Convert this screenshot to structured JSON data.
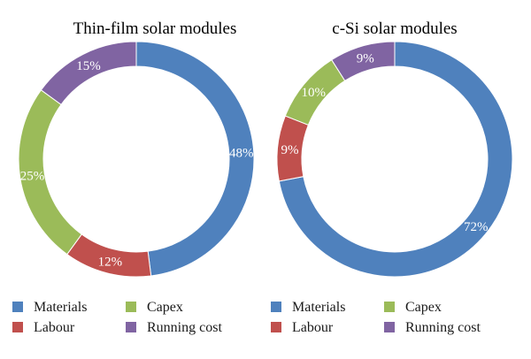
{
  "chart_data": [
    {
      "type": "pie",
      "title": "Thin-film solar modules",
      "categories": [
        "Materials",
        "Labour",
        "Capex",
        "Running cost"
      ],
      "values": [
        48,
        12,
        25,
        15
      ],
      "labels": [
        "48%",
        "12%",
        "25%",
        "15%"
      ],
      "colors": [
        "#4F81BD",
        "#C0504D",
        "#9BBB59",
        "#8064A2"
      ],
      "legend": {
        "placement": "bottom",
        "entries": [
          "Materials",
          "Capex",
          "Labour",
          "Running cost"
        ]
      }
    },
    {
      "type": "pie",
      "title": "c-Si solar modules",
      "categories": [
        "Materials",
        "Labour",
        "Capex",
        "Running cost"
      ],
      "values": [
        72,
        9,
        10,
        9
      ],
      "labels": [
        "72%",
        "9%",
        "10%",
        "9%"
      ],
      "colors": [
        "#4F81BD",
        "#C0504D",
        "#9BBB59",
        "#8064A2"
      ],
      "legend": {
        "placement": "bottom",
        "entries": [
          "Materials",
          "Capex",
          "Labour",
          "Running cost"
        ]
      }
    }
  ]
}
